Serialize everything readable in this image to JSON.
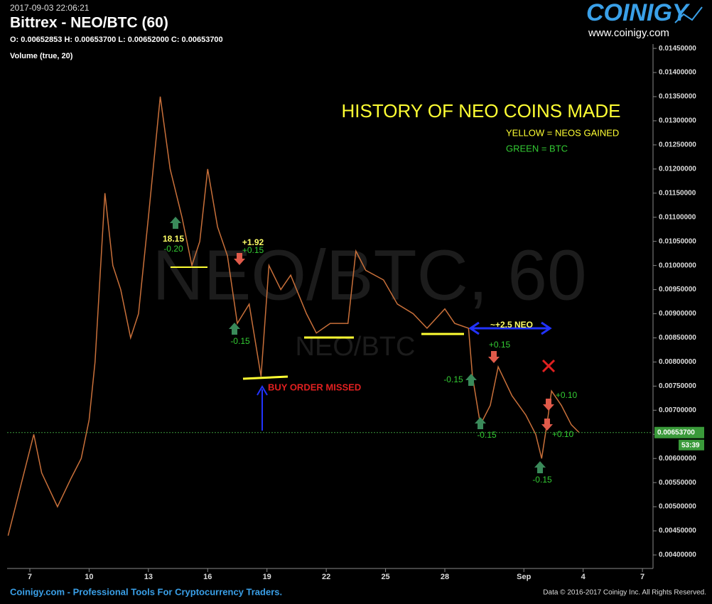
{
  "header": {
    "timestamp": "2017-09-03 22:06:21",
    "title": "Bittrex - NEO/BTC (60)",
    "ohlc": "O: 0.00652853 H: 0.00653700 L: 0.00652000 C: 0.00653700",
    "indicator": "Volume (true, 20)",
    "logo": "COINIGY",
    "logo_url": "www.coinigy.com"
  },
  "watermark": {
    "big": "NEO/BTC, 60",
    "small": "NEO/BTC"
  },
  "footer": {
    "left": "Coinigy.com - Professional Tools For Cryptocurrency Traders.",
    "right": "Data © 2016-2017 Coinigy Inc. All Rights Reserved."
  },
  "chart_data": {
    "type": "line",
    "x": [
      5.9,
      7.2,
      7.6,
      8.4,
      9.1,
      9.6,
      10.0,
      10.3,
      10.8,
      11.2,
      11.6,
      12.1,
      12.5,
      13.0,
      13.6,
      14.1,
      14.7,
      15.2,
      15.6,
      16.0,
      16.5,
      17.0,
      17.5,
      18.1,
      18.7,
      19.1,
      19.7,
      20.2,
      21.0,
      21.5,
      22.2,
      23.1,
      23.5,
      24.0,
      24.9,
      25.6,
      26.4,
      27.1,
      28.0,
      28.5,
      29.2,
      29.4,
      29.8,
      30.3,
      30.7,
      31.4,
      32.1,
      32.6,
      32.9,
      33.2,
      33.4,
      33.9,
      34.4,
      34.8
    ],
    "series": [
      {
        "name": "NEO/BTC",
        "color": "#c9703a",
        "values": [
          0.0044,
          0.0065,
          0.0057,
          0.005,
          0.0056,
          0.006,
          0.0068,
          0.008,
          0.0115,
          0.01,
          0.0095,
          0.0085,
          0.009,
          0.011,
          0.0135,
          0.012,
          0.011,
          0.01,
          0.0105,
          0.012,
          0.0108,
          0.0102,
          0.0088,
          0.0092,
          0.0077,
          0.01,
          0.0095,
          0.0098,
          0.009,
          0.0086,
          0.0088,
          0.0088,
          0.0103,
          0.0099,
          0.0097,
          0.0092,
          0.009,
          0.0087,
          0.0091,
          0.0088,
          0.0087,
          0.0077,
          0.0067,
          0.0071,
          0.0079,
          0.0073,
          0.0069,
          0.0065,
          0.006,
          0.0068,
          0.0074,
          0.0071,
          0.0067,
          0.006537
        ]
      }
    ],
    "xlim": [
      5.85,
      38.5
    ],
    "xticks": [
      7,
      10,
      13,
      16,
      19,
      22,
      25,
      28,
      {
        "value": 32,
        "label": "Sep"
      },
      {
        "value": 35,
        "label": "4"
      },
      {
        "value": 38,
        "label": "7"
      }
    ],
    "ylim": [
      0.00372,
      0.01459
    ],
    "yticks": [
      {
        "value": 0.004,
        "label": "0.00400000"
      },
      {
        "value": 0.0045,
        "label": "0.00450000"
      },
      {
        "value": 0.005,
        "label": "0.00500000"
      },
      {
        "value": 0.0055,
        "label": "0.00550000"
      },
      {
        "value": 0.006,
        "label": "0.00600000"
      },
      {
        "value": 0.0065,
        "label": "0.00650000"
      },
      {
        "value": 0.007,
        "label": "0.00700000"
      },
      {
        "value": 0.0075,
        "label": "0.00750000"
      },
      {
        "value": 0.008,
        "label": "0.00800000"
      },
      {
        "value": 0.0085,
        "label": "0.00850000"
      },
      {
        "value": 0.009,
        "label": "0.00900000"
      },
      {
        "value": 0.0095,
        "label": "0.00950000"
      },
      {
        "value": 0.01,
        "label": "0.01000000"
      },
      {
        "value": 0.0105,
        "label": "0.01050000"
      },
      {
        "value": 0.011,
        "label": "0.01100000"
      },
      {
        "value": 0.0115,
        "label": "0.01150000"
      },
      {
        "value": 0.012,
        "label": "0.01200000"
      },
      {
        "value": 0.0125,
        "label": "0.01250000"
      },
      {
        "value": 0.013,
        "label": "0.01300000"
      },
      {
        "value": 0.0135,
        "label": "0.01350000"
      },
      {
        "value": 0.014,
        "label": "0.01400000"
      },
      {
        "value": 0.0145,
        "label": "0.01450000"
      }
    ],
    "last_price": {
      "value": 0.006537,
      "label": "0.00653700"
    },
    "countdown": "53:39",
    "grid": false,
    "annotations": [
      {
        "text": "HISTORY OF NEO COINS MADE",
        "color": "#ffff33"
      },
      {
        "text": "YELLOW = NEOS GAINED",
        "color": "#ffff33"
      },
      {
        "text": "GREEN = BTC",
        "color": "#33cc33"
      },
      {
        "text": "18.15",
        "color": "#ffff66"
      },
      {
        "text": "-0.20",
        "color": "#33cc33"
      },
      {
        "text": "+1.92",
        "color": "#ffff66"
      },
      {
        "text": "+0.15",
        "color": "#33cc33"
      },
      {
        "text": "-0.15",
        "color": "#33cc33"
      },
      {
        "text": "BUY ORDER MISSED",
        "color": "#e02020"
      },
      {
        "text": "~+2.5 NEO",
        "color": "#ffff66"
      },
      {
        "text": "+0.15",
        "color": "#33cc33"
      },
      {
        "text": "-0.15",
        "color": "#33cc33"
      },
      {
        "text": "-0.15",
        "color": "#33cc33"
      },
      {
        "text": "+0.10",
        "color": "#33cc33"
      },
      {
        "text": "+0.10",
        "color": "#33cc33"
      },
      {
        "text": "-0.15",
        "color": "#33cc33"
      }
    ]
  }
}
